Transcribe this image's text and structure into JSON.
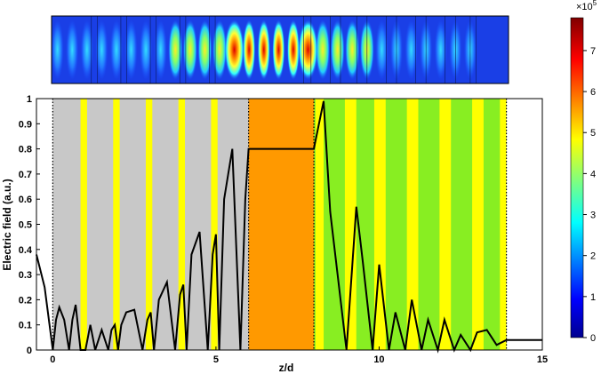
{
  "chart_data": [
    {
      "type": "heatmap",
      "title": "",
      "description_axis": "z/d (same range as lower plot)",
      "x_range": [
        -0.5,
        15
      ],
      "peak_positions": [
        5.7,
        8.3
      ],
      "colorbar": {
        "min": 0,
        "max": 7.8,
        "ticks": [
          "0",
          "1",
          "2",
          "3",
          "4",
          "5",
          "6",
          "7"
        ],
        "tick_values": [
          0,
          1,
          2,
          3,
          4,
          5,
          6,
          7
        ],
        "exponent_label": "×10",
        "exponent_power": "5",
        "colormap": "jet"
      }
    },
    {
      "type": "line",
      "xlabel": "z/d",
      "ylabel": "Electric field (a.u.)",
      "xlim": [
        -0.5,
        15
      ],
      "ylim": [
        0,
        1
      ],
      "xticks": [
        0,
        5,
        10,
        15
      ],
      "xtick_labels": [
        "0",
        "5",
        "10",
        "15"
      ],
      "yticks": [
        0,
        0.1,
        0.2,
        0.3,
        0.4,
        0.5,
        0.6,
        0.7,
        0.8,
        0.9,
        1
      ],
      "ytick_labels": [
        "0",
        "0.1",
        "0.2",
        "0.3",
        "0.4",
        "0.5",
        "0.6",
        "0.7",
        "0.8",
        "0.9",
        "1"
      ],
      "grid": false,
      "regions": [
        {
          "x0": 0,
          "x1": 6,
          "base": "#c8c8c8",
          "stripes": [
            [
              0.85,
              1.05
            ],
            [
              1.85,
              2.05
            ],
            [
              2.85,
              3.05
            ],
            [
              3.85,
              4.05
            ],
            [
              4.85,
              5.05
            ]
          ],
          "stripe_color": "#ffff00"
        },
        {
          "x0": 6,
          "x1": 8,
          "base": "#ff9900",
          "stripes": [],
          "stripe_color": "#ffff00"
        },
        {
          "x0": 8,
          "x1": 13.9,
          "base": "#88ee22",
          "stripes": [
            [
              8.05,
              8.3
            ],
            [
              8.95,
              9.3
            ],
            [
              9.85,
              10.2
            ],
            [
              10.85,
              11.2
            ],
            [
              11.85,
              12.2
            ],
            [
              12.85,
              13.2
            ],
            [
              13.7,
              13.9
            ]
          ],
          "stripe_color": "#ffff00"
        }
      ],
      "interface_lines": [
        0,
        6,
        8,
        13.9
      ],
      "series": [
        {
          "color": "#000000",
          "x": [
            -0.5,
            -0.25,
            0,
            0.1,
            0.2,
            0.35,
            0.5,
            0.6,
            0.7,
            0.85,
            1.0,
            1.15,
            1.3,
            1.5,
            1.7,
            1.8,
            1.9,
            2.0,
            2.1,
            2.25,
            2.5,
            2.75,
            2.9,
            3.0,
            3.1,
            3.25,
            3.5,
            3.75,
            3.9,
            4.0,
            4.1,
            4.25,
            4.5,
            4.75,
            4.9,
            5.0,
            5.1,
            5.25,
            5.5,
            5.75,
            5.9,
            6.0,
            6.5,
            7.0,
            7.5,
            8.0,
            8.3,
            8.5,
            9.0,
            9.3,
            9.5,
            9.8,
            10.0,
            10.3,
            10.5,
            10.8,
            11.0,
            11.3,
            11.5,
            11.8,
            12.0,
            12.3,
            12.5,
            12.8,
            13.0,
            13.3,
            13.6,
            13.9,
            14.5,
            15.0
          ],
          "y": [
            0.38,
            0.25,
            0.0,
            0.12,
            0.17,
            0.12,
            0.0,
            0.12,
            0.18,
            0.0,
            0.0,
            0.1,
            0.0,
            0.08,
            0.0,
            0.08,
            0.1,
            0.0,
            0.1,
            0.15,
            0.16,
            0.0,
            0.12,
            0.15,
            0.0,
            0.2,
            0.27,
            0.0,
            0.22,
            0.26,
            0.0,
            0.38,
            0.47,
            0.0,
            0.38,
            0.46,
            0.0,
            0.6,
            0.8,
            0.0,
            0.6,
            0.8,
            0.8,
            0.8,
            0.8,
            0.8,
            0.99,
            0.55,
            0.0,
            0.57,
            0.35,
            0.0,
            0.34,
            0.0,
            0.15,
            0.0,
            0.2,
            0.0,
            0.12,
            0.0,
            0.12,
            0.0,
            0.06,
            0.0,
            0.07,
            0.08,
            0.02,
            0.04,
            0.04,
            0.04
          ]
        }
      ]
    }
  ]
}
